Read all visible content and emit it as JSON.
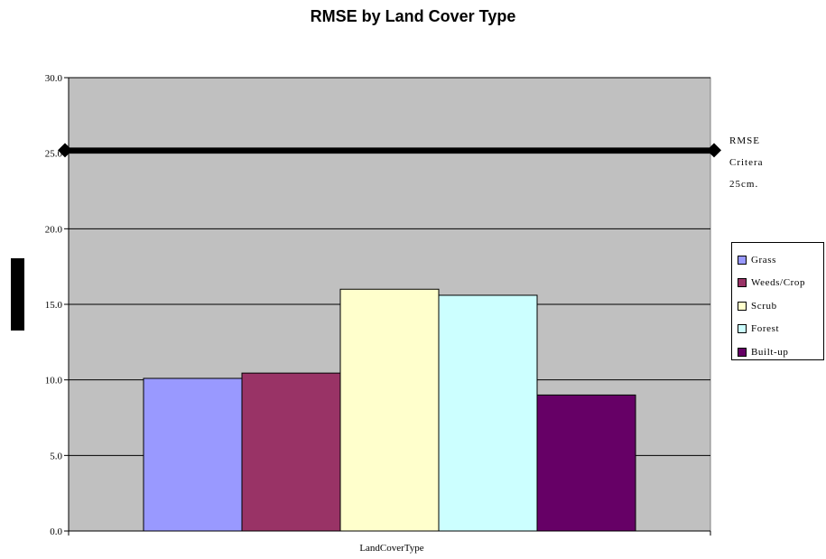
{
  "chart_data": {
    "type": "bar",
    "title": "RMSE by Land Cover Type",
    "xlabel": "LandCoverType",
    "ylabel": "",
    "ylim": [
      0,
      30
    ],
    "yticks": [
      "0.0",
      "5.0",
      "10.0",
      "15.0",
      "20.0",
      "25.0",
      "30.0"
    ],
    "grid": true,
    "plot_background": "#c0c0c0",
    "legend_position": "right",
    "series": [
      {
        "name": "Grass",
        "value": 10.1,
        "color": "#9999ff"
      },
      {
        "name": "Weeds/Crop",
        "value": 10.45,
        "color": "#993366"
      },
      {
        "name": "Scrub",
        "value": 16.0,
        "color": "#ffffcc"
      },
      {
        "name": "Forest",
        "value": 15.6,
        "color": "#ccffff"
      },
      {
        "name": "Built-up",
        "value": 9.0,
        "color": "#660066"
      }
    ],
    "reference_line": {
      "value": 25.2,
      "label_lines": [
        "RMSE",
        "Critera",
        "25cm."
      ],
      "color": "#000000"
    }
  }
}
